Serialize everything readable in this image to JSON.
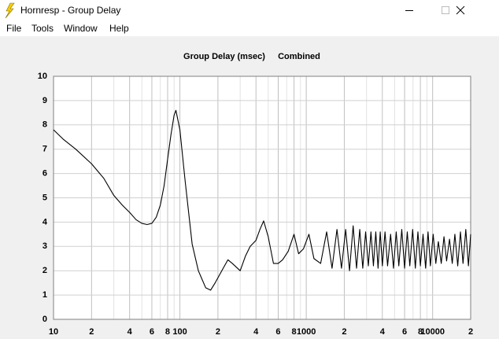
{
  "window": {
    "title": "Hornresp - Group Delay",
    "menu": [
      "File",
      "Tools",
      "Window",
      "Help"
    ]
  },
  "chart_data": {
    "type": "line",
    "title": "Group Delay (msec)",
    "subtitle": "Combined",
    "x_scale": "log",
    "xlim": [
      10,
      20000
    ],
    "ylim": [
      0,
      10
    ],
    "yticks": [
      0,
      1,
      2,
      3,
      4,
      5,
      6,
      7,
      8,
      9,
      10
    ],
    "xticks": [
      10,
      {
        "value": 20,
        "label": "2"
      },
      {
        "value": 40,
        "label": "4"
      },
      {
        "value": 60,
        "label": "6"
      },
      {
        "value": 80,
        "label": "8"
      },
      100,
      {
        "value": 200,
        "label": "2"
      },
      {
        "value": 400,
        "label": "4"
      },
      {
        "value": 600,
        "label": "6"
      },
      {
        "value": 800,
        "label": "8"
      },
      1000,
      {
        "value": 2000,
        "label": "2"
      },
      {
        "value": 4000,
        "label": "4"
      },
      {
        "value": 6000,
        "label": "6"
      },
      {
        "value": 8000,
        "label": "8"
      },
      10000,
      {
        "value": 20000,
        "label": "2"
      }
    ],
    "x_minor_ticks": [
      30,
      50,
      70,
      90,
      300,
      500,
      700,
      900,
      3000,
      5000,
      7000,
      9000
    ],
    "grid": true,
    "series": [
      {
        "color": "#000000",
        "x": [
          10,
          12,
          15,
          20,
          25,
          30,
          35,
          40,
          45,
          50,
          55,
          60,
          65,
          70,
          75,
          80,
          85,
          90,
          93,
          100,
          110,
          125,
          140,
          160,
          175,
          190,
          220,
          240,
          260,
          300,
          330,
          360,
          400,
          430,
          460,
          500,
          550,
          600,
          650,
          720,
          800,
          870,
          950,
          1050,
          1150,
          1300,
          1450,
          1600,
          1750,
          1900,
          2050,
          2200,
          2350,
          2500,
          2650,
          2800,
          2950,
          3100,
          3250,
          3400,
          3550,
          3700,
          3850,
          4000,
          4200,
          4400,
          4650,
          4900,
          5150,
          5400,
          5700,
          6000,
          6300,
          6600,
          6950,
          7300,
          7650,
          8000,
          8400,
          8800,
          9200,
          9600,
          10100,
          10600,
          11100,
          11700,
          12300,
          12900,
          13600,
          14300,
          15000,
          15800,
          16600,
          17400,
          18300,
          19200,
          20000
        ],
        "values": [
          7.8,
          7.4,
          7.0,
          6.4,
          5.8,
          5.1,
          4.7,
          4.4,
          4.1,
          3.95,
          3.9,
          3.95,
          4.2,
          4.7,
          5.5,
          6.6,
          7.6,
          8.4,
          8.6,
          7.8,
          5.7,
          3.1,
          2.0,
          1.3,
          1.2,
          1.5,
          2.1,
          2.45,
          2.3,
          2.0,
          2.6,
          3.0,
          3.25,
          3.7,
          4.05,
          3.4,
          2.3,
          2.3,
          2.45,
          2.8,
          3.5,
          2.7,
          2.9,
          3.5,
          2.5,
          2.3,
          3.6,
          2.1,
          3.7,
          2.1,
          3.7,
          2.0,
          3.85,
          2.1,
          3.7,
          2.1,
          3.6,
          2.2,
          3.6,
          2.2,
          3.6,
          2.1,
          3.6,
          2.2,
          3.6,
          2.2,
          3.5,
          2.1,
          3.6,
          2.2,
          3.7,
          2.1,
          3.6,
          2.2,
          3.7,
          2.1,
          3.6,
          2.2,
          3.5,
          2.1,
          3.6,
          2.2,
          3.5,
          2.3,
          3.2,
          2.3,
          3.4,
          2.4,
          3.3,
          2.3,
          3.5,
          2.2,
          3.6,
          2.3,
          3.7,
          2.2,
          3.5
        ]
      }
    ]
  }
}
